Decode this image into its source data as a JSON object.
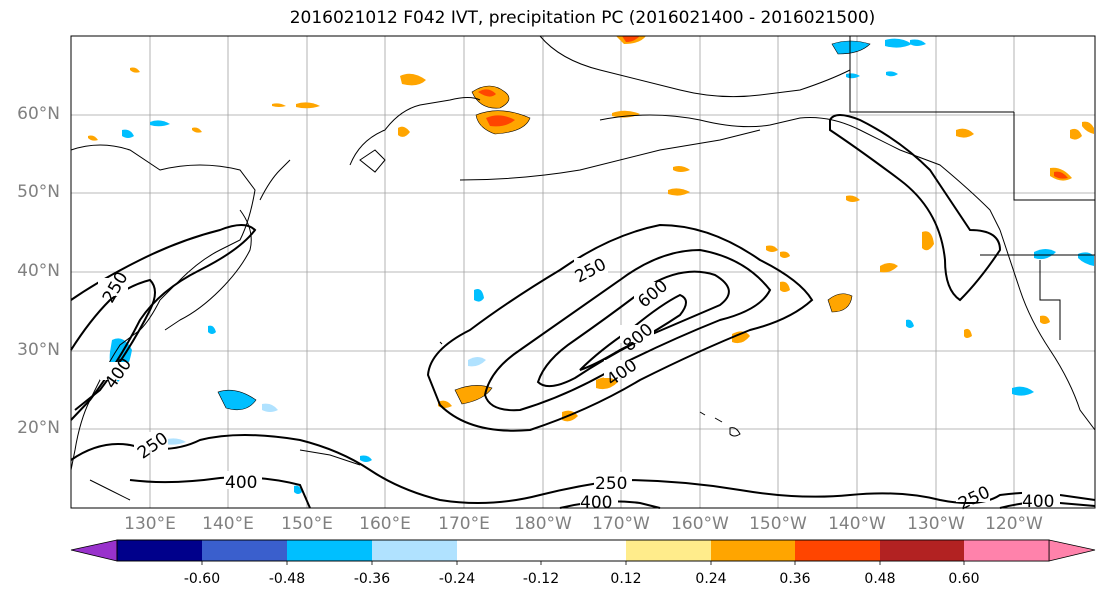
{
  "title": "2016021012 F042 IVT, precipitation PC (2016021400 - 2016021500)",
  "lat_ticks": [
    "60°N",
    "50°N",
    "40°N",
    "30°N",
    "20°N"
  ],
  "lon_ticks": [
    "130°E",
    "140°E",
    "150°E",
    "160°E",
    "170°E",
    "180°W",
    "170°W",
    "160°W",
    "150°W",
    "140°W",
    "130°W",
    "120°W"
  ],
  "contour_labels": [
    "250",
    "600",
    "800",
    "400",
    "250",
    "400",
    "250",
    "400",
    "250",
    "250",
    "400"
  ],
  "colorbar": {
    "colors": [
      "#9932cc",
      "#00008b",
      "#3a5fcd",
      "#00bfff",
      "#b0e2ff",
      "#ffffff",
      "#ffec8b",
      "#ffa500",
      "#ff4500",
      "#b22222",
      "#ff82ab"
    ],
    "tick_labels": [
      "-0.60",
      "-0.48",
      "-0.36",
      "-0.24",
      "-0.12",
      "0.12",
      "0.24",
      "0.36",
      "0.48",
      "0.60"
    ]
  }
}
